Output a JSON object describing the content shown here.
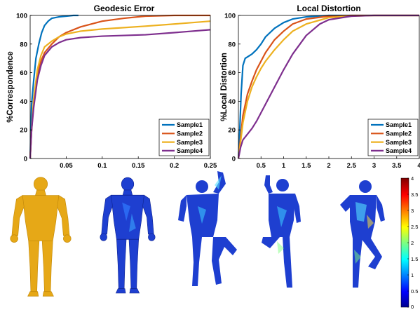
{
  "chart_data": [
    {
      "type": "line",
      "title": "Geodesic Error",
      "xlabel": "",
      "ylabel": "%Correspondence",
      "xlim": [
        0,
        0.25
      ],
      "ylim": [
        0,
        100
      ],
      "x_ticks": [
        "0.05",
        "0.1",
        "0.15",
        "0.2",
        "0.25"
      ],
      "x_tick_values": [
        0.05,
        0.1,
        0.15,
        0.2,
        0.25
      ],
      "y_ticks": [
        "0",
        "20",
        "40",
        "60",
        "80",
        "100"
      ],
      "y_tick_values": [
        0,
        20,
        40,
        60,
        80,
        100
      ],
      "grid": false,
      "legend": "bottom-right",
      "series": [
        {
          "name": "Sample1",
          "color": "#0072BD",
          "x": [
            0,
            0.002,
            0.005,
            0.008,
            0.012,
            0.016,
            0.02,
            0.025,
            0.03,
            0.04,
            0.05,
            0.06,
            0.067
          ],
          "y": [
            0,
            38,
            55,
            70,
            80,
            88,
            93,
            96,
            98,
            99,
            99.5,
            100,
            100
          ]
        },
        {
          "name": "Sample2",
          "color": "#D95319",
          "x": [
            0,
            0.002,
            0.005,
            0.01,
            0.015,
            0.02,
            0.03,
            0.04,
            0.05,
            0.07,
            0.1,
            0.13,
            0.16,
            0.2,
            0.25
          ],
          "y": [
            0,
            20,
            40,
            58,
            68,
            74,
            80,
            85,
            88,
            92,
            96,
            98,
            99.5,
            100,
            100
          ]
        },
        {
          "name": "Sample3",
          "color": "#EDB120",
          "x": [
            0,
            0.002,
            0.005,
            0.01,
            0.015,
            0.02,
            0.03,
            0.04,
            0.05,
            0.07,
            0.1,
            0.13,
            0.16,
            0.2,
            0.25
          ],
          "y": [
            0,
            20,
            42,
            62,
            72,
            78,
            82,
            85,
            87,
            89,
            90.5,
            91.5,
            92.5,
            94,
            96
          ]
        },
        {
          "name": "Sample4",
          "color": "#7E2F8E",
          "x": [
            0,
            0.002,
            0.005,
            0.01,
            0.015,
            0.02,
            0.03,
            0.04,
            0.05,
            0.07,
            0.1,
            0.13,
            0.16,
            0.2,
            0.25
          ],
          "y": [
            0,
            20,
            36,
            55,
            65,
            72,
            78,
            81,
            83,
            84.5,
            85.5,
            86,
            86.5,
            88,
            90
          ]
        }
      ]
    },
    {
      "type": "line",
      "title": "Local Distortion",
      "xlabel": "",
      "ylabel": "%Local Distortion",
      "xlim": [
        0,
        4
      ],
      "ylim": [
        0,
        100
      ],
      "x_ticks": [
        "0.5",
        "1",
        "1.5",
        "2",
        "2.5",
        "3",
        "3.5",
        "4"
      ],
      "x_tick_values": [
        0.5,
        1,
        1.5,
        2,
        2.5,
        3,
        3.5,
        4
      ],
      "y_ticks": [
        "0",
        "20",
        "40",
        "60",
        "80",
        "100"
      ],
      "y_tick_values": [
        0,
        20,
        40,
        60,
        80,
        100
      ],
      "grid": false,
      "legend": "bottom-right",
      "series": [
        {
          "name": "Sample1",
          "color": "#0072BD",
          "x": [
            0,
            0.03,
            0.06,
            0.1,
            0.15,
            0.2,
            0.3,
            0.4,
            0.5,
            0.6,
            0.8,
            1,
            1.2,
            1.5,
            2,
            2.5,
            3,
            4
          ],
          "y": [
            0,
            20,
            45,
            65,
            70,
            71,
            73,
            76,
            80,
            85,
            91,
            95,
            97.5,
            99,
            100,
            100,
            100,
            100
          ]
        },
        {
          "name": "Sample2",
          "color": "#D95319",
          "x": [
            0,
            0.05,
            0.1,
            0.2,
            0.3,
            0.4,
            0.5,
            0.6,
            0.8,
            1,
            1.2,
            1.5,
            2,
            2.5,
            3,
            4
          ],
          "y": [
            0,
            15,
            30,
            45,
            54,
            62,
            68,
            74,
            83,
            89,
            94,
            97.5,
            99.5,
            100,
            100,
            100
          ]
        },
        {
          "name": "Sample3",
          "color": "#EDB120",
          "x": [
            0,
            0.05,
            0.1,
            0.2,
            0.3,
            0.4,
            0.5,
            0.6,
            0.8,
            1,
            1.2,
            1.5,
            2,
            2.5,
            3,
            4
          ],
          "y": [
            0,
            12,
            25,
            40,
            50,
            57,
            63,
            68,
            76,
            83,
            89,
            94,
            98.5,
            99.5,
            100,
            100
          ]
        },
        {
          "name": "Sample4",
          "color": "#7E2F8E",
          "x": [
            0,
            0.05,
            0.1,
            0.2,
            0.3,
            0.4,
            0.5,
            0.6,
            0.8,
            1,
            1.2,
            1.5,
            1.8,
            2,
            2.5,
            3,
            4
          ],
          "y": [
            0,
            8,
            13,
            17,
            21,
            26,
            32,
            38,
            50,
            62,
            73,
            86,
            94,
            97,
            99.5,
            100,
            100
          ]
        }
      ]
    }
  ],
  "colorbar": {
    "ticks": [
      "4",
      "3.5",
      "3",
      "2.5",
      "2",
      "1.5",
      "1",
      "0.5",
      "0"
    ],
    "tick_values": [
      4,
      3.5,
      3,
      2.5,
      2,
      1.5,
      1,
      0.5,
      0
    ],
    "range": [
      0,
      4
    ],
    "colormap": "jet"
  },
  "figures": [
    {
      "name": "reference-mesh",
      "color": "#E6A817"
    },
    {
      "name": "sample1-distortion-mesh",
      "color": "#1E3FD0"
    },
    {
      "name": "sample2-distortion-mesh",
      "color": "#1E3FD0"
    },
    {
      "name": "sample3-distortion-mesh",
      "color": "#1E3FD0"
    },
    {
      "name": "sample4-distortion-mesh",
      "color": "#1E3FD0"
    }
  ]
}
